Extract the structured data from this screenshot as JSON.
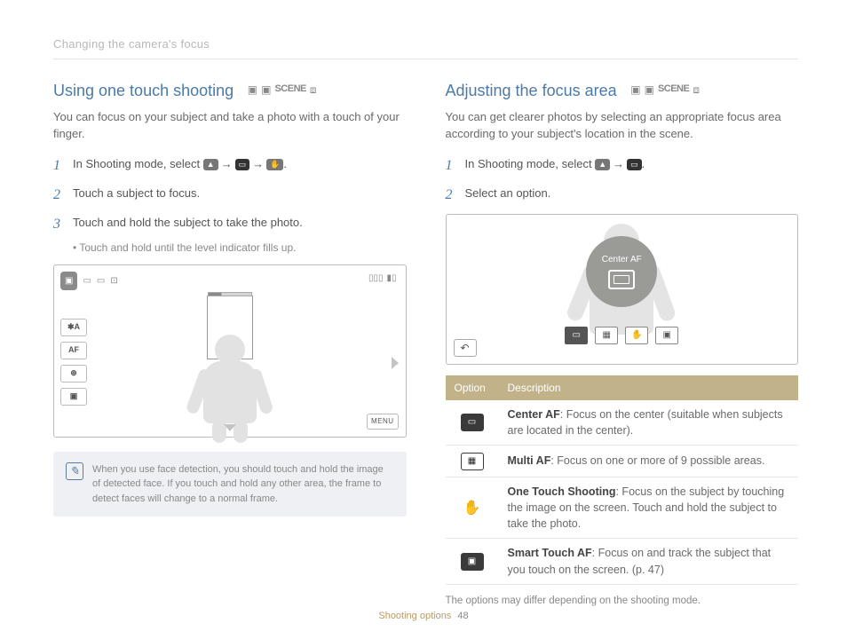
{
  "chapter": "Changing the camera's focus",
  "footer": {
    "section": "Shooting options",
    "page": "48"
  },
  "left": {
    "title": "Using one touch shooting",
    "intro": "You can focus on your subject and take a photo with a touch of your finger.",
    "step1_a": "In Shooting mode, select ",
    "step1_b": ".",
    "step2": "Touch a subject to focus.",
    "step3": "Touch and hold the subject to take the photo.",
    "sub3": "Touch and hold until the level indicator fills up.",
    "ui": {
      "af_label": "AF",
      "flash_label": "✱A",
      "timer_label": "⊕",
      "res_label": "▣",
      "menu_label": "MENU"
    },
    "note": "When you use face detection, you should touch and hold the image of detected face. If you touch and hold any other area, the frame to detect faces will change to a normal frame."
  },
  "right": {
    "title": "Adjusting the focus area",
    "intro": "You can get clearer photos by selecting an appropriate focus area according to your subject's location in the scene.",
    "step1_a": "In Shooting mode, select ",
    "step1_b": ".",
    "step2": "Select an option.",
    "badge_label": "Center AF",
    "table": {
      "head_option": "Option",
      "head_desc": "Description",
      "rows": [
        {
          "bold": "Center AF",
          "rest": ": Focus on the center (suitable when subjects are located in the center)."
        },
        {
          "bold": "Multi AF",
          "rest": ": Focus on one or more of 9 possible areas."
        },
        {
          "bold": "One Touch Shooting",
          "rest": ": Focus on the subject by touching the image on the screen. Touch and hold the subject to take the photo."
        },
        {
          "bold": "Smart Touch AF",
          "rest": ": Focus on and track the subject that you touch on the screen. (p. 47)"
        }
      ],
      "footnote": "The options may differ depending on the shooting mode."
    }
  },
  "colors": {
    "heading": "#4b7aa8",
    "table_header_bg": "#c1b28a",
    "note_bg": "#eef0f3",
    "footer_accent": "#b69b66"
  }
}
